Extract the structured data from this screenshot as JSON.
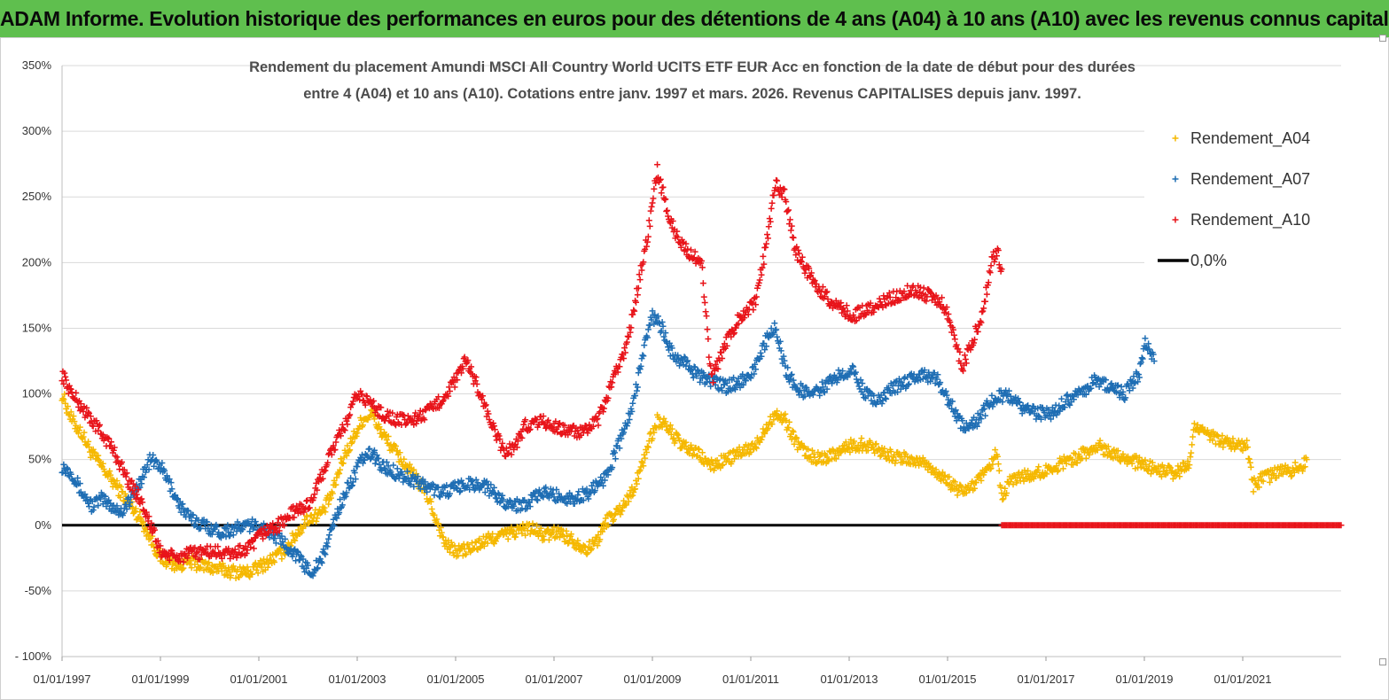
{
  "header": {
    "banner": "ADAM Informe. Evolution historique des performances en euros pour des détentions de 4 ans (A04) à 10 ans (A10) avec les revenus connus capitalisés"
  },
  "chart_data": {
    "type": "scatter",
    "title_lines": [
      "Rendement du placement Amundi MSCI All Country World UCITS ETF EUR Acc en fonction de la date de début pour des durées",
      "entre 4 (A04) et 10 ans (A10). Cotations entre janv. 1997 et mars. 2026. Revenus CAPITALISES depuis janv. 1997."
    ],
    "x_range": [
      1997.0,
      2023.0
    ],
    "x_ticks": [
      {
        "value": 1997,
        "label": "01/01/1997"
      },
      {
        "value": 1999,
        "label": "01/01/1999"
      },
      {
        "value": 2001,
        "label": "01/01/2001"
      },
      {
        "value": 2003,
        "label": "01/01/2003"
      },
      {
        "value": 2005,
        "label": "01/01/2005"
      },
      {
        "value": 2007,
        "label": "01/01/2007"
      },
      {
        "value": 2009,
        "label": "01/01/2009"
      },
      {
        "value": 2011,
        "label": "01/01/2011"
      },
      {
        "value": 2013,
        "label": "01/01/2013"
      },
      {
        "value": 2015,
        "label": "01/01/2015"
      },
      {
        "value": 2017,
        "label": "01/01/2017"
      },
      {
        "value": 2019,
        "label": "01/01/2019"
      },
      {
        "value": 2021,
        "label": "01/01/2021"
      }
    ],
    "y_range": [
      -100,
      350
    ],
    "y_ticks": [
      {
        "value": 350,
        "label": "350%"
      },
      {
        "value": 300,
        "label": "300%"
      },
      {
        "value": 250,
        "label": "250%"
      },
      {
        "value": 200,
        "label": "200%"
      },
      {
        "value": 150,
        "label": "150%"
      },
      {
        "value": 100,
        "label": "100%"
      },
      {
        "value": 50,
        "label": "50%"
      },
      {
        "value": 0,
        "label": "0%"
      },
      {
        "value": -50,
        "label": "-50%"
      },
      {
        "value": -100,
        "label": "- 100%"
      }
    ],
    "grid": "horizontal",
    "legend_position": "top-right",
    "series": [
      {
        "name": "Rendement_A04",
        "color": "#f5b800",
        "marker": "plus",
        "points": [
          [
            1997.0,
            100
          ],
          [
            1997.2,
            80
          ],
          [
            1997.4,
            70
          ],
          [
            1997.6,
            55
          ],
          [
            1997.8,
            45
          ],
          [
            1998.0,
            35
          ],
          [
            1998.2,
            25
          ],
          [
            1998.4,
            15
          ],
          [
            1998.6,
            5
          ],
          [
            1998.8,
            -10
          ],
          [
            1999.0,
            -25
          ],
          [
            1999.3,
            -30
          ],
          [
            1999.6,
            -28
          ],
          [
            2000.0,
            -32
          ],
          [
            2000.4,
            -35
          ],
          [
            2000.8,
            -36
          ],
          [
            2001.1,
            -30
          ],
          [
            2001.5,
            -20
          ],
          [
            2001.8,
            -5
          ],
          [
            2002.0,
            5
          ],
          [
            2002.3,
            10
          ],
          [
            2002.5,
            25
          ],
          [
            2002.7,
            50
          ],
          [
            2002.9,
            65
          ],
          [
            2003.1,
            80
          ],
          [
            2003.3,
            85
          ],
          [
            2003.5,
            70
          ],
          [
            2003.8,
            55
          ],
          [
            2004.1,
            40
          ],
          [
            2004.4,
            25
          ],
          [
            2004.6,
            5
          ],
          [
            2004.8,
            -15
          ],
          [
            2005.0,
            -20
          ],
          [
            2005.3,
            -18
          ],
          [
            2005.6,
            -12
          ],
          [
            2005.9,
            -8
          ],
          [
            2006.2,
            -5
          ],
          [
            2006.5,
            -2
          ],
          [
            2006.8,
            -8
          ],
          [
            2007.1,
            -5
          ],
          [
            2007.4,
            -12
          ],
          [
            2007.7,
            -18
          ],
          [
            2007.9,
            -10
          ],
          [
            2008.1,
            5
          ],
          [
            2008.3,
            10
          ],
          [
            2008.5,
            20
          ],
          [
            2008.7,
            35
          ],
          [
            2008.9,
            60
          ],
          [
            2009.1,
            80
          ],
          [
            2009.3,
            75
          ],
          [
            2009.6,
            60
          ],
          [
            2009.9,
            55
          ],
          [
            2010.2,
            45
          ],
          [
            2010.5,
            50
          ],
          [
            2010.8,
            55
          ],
          [
            2011.1,
            60
          ],
          [
            2011.3,
            75
          ],
          [
            2011.5,
            85
          ],
          [
            2011.7,
            80
          ],
          [
            2011.9,
            65
          ],
          [
            2012.1,
            55
          ],
          [
            2012.4,
            50
          ],
          [
            2012.7,
            55
          ],
          [
            2013.0,
            60
          ],
          [
            2013.3,
            62
          ],
          [
            2013.6,
            58
          ],
          [
            2013.9,
            52
          ],
          [
            2014.2,
            50
          ],
          [
            2014.5,
            48
          ],
          [
            2014.8,
            40
          ],
          [
            2015.1,
            30
          ],
          [
            2015.3,
            25
          ],
          [
            2015.5,
            30
          ],
          [
            2015.8,
            40
          ],
          [
            2016.0,
            55
          ],
          [
            2016.1,
            20
          ],
          [
            2016.3,
            35
          ],
          [
            2016.6,
            38
          ],
          [
            2016.9,
            40
          ],
          [
            2017.2,
            45
          ],
          [
            2017.5,
            50
          ],
          [
            2017.8,
            55
          ],
          [
            2018.1,
            60
          ],
          [
            2018.4,
            55
          ],
          [
            2018.7,
            50
          ],
          [
            2019.0,
            45
          ],
          [
            2019.3,
            42
          ],
          [
            2019.6,
            40
          ],
          [
            2019.9,
            45
          ],
          [
            2020.0,
            75
          ],
          [
            2020.2,
            70
          ],
          [
            2020.5,
            65
          ],
          [
            2020.8,
            62
          ],
          [
            2021.1,
            60
          ],
          [
            2021.2,
            30
          ],
          [
            2021.4,
            35
          ],
          [
            2021.7,
            40
          ],
          [
            2022.0,
            42
          ],
          [
            2022.2,
            45
          ],
          [
            2022.3,
            50
          ]
        ]
      },
      {
        "name": "Rendement_A07",
        "color": "#1f6eb4",
        "marker": "plus",
        "points": [
          [
            1997.0,
            45
          ],
          [
            1997.2,
            40
          ],
          [
            1997.4,
            25
          ],
          [
            1997.6,
            15
          ],
          [
            1997.8,
            20
          ],
          [
            1998.0,
            15
          ],
          [
            1998.2,
            10
          ],
          [
            1998.4,
            20
          ],
          [
            1998.6,
            35
          ],
          [
            1998.8,
            50
          ],
          [
            1999.0,
            45
          ],
          [
            1999.2,
            30
          ],
          [
            1999.4,
            15
          ],
          [
            1999.6,
            5
          ],
          [
            1999.9,
            0
          ],
          [
            2000.2,
            -5
          ],
          [
            2000.5,
            -3
          ],
          [
            2000.8,
            0
          ],
          [
            2001.1,
            -2
          ],
          [
            2001.4,
            -10
          ],
          [
            2001.7,
            -20
          ],
          [
            2001.9,
            -30
          ],
          [
            2002.1,
            -35
          ],
          [
            2002.3,
            -25
          ],
          [
            2002.5,
            0
          ],
          [
            2002.7,
            20
          ],
          [
            2002.9,
            35
          ],
          [
            2003.1,
            50
          ],
          [
            2003.3,
            55
          ],
          [
            2003.5,
            45
          ],
          [
            2003.8,
            40
          ],
          [
            2004.1,
            35
          ],
          [
            2004.4,
            30
          ],
          [
            2004.7,
            25
          ],
          [
            2005.0,
            28
          ],
          [
            2005.3,
            32
          ],
          [
            2005.6,
            30
          ],
          [
            2005.9,
            20
          ],
          [
            2006.2,
            15
          ],
          [
            2006.5,
            18
          ],
          [
            2006.8,
            25
          ],
          [
            2007.1,
            22
          ],
          [
            2007.4,
            20
          ],
          [
            2007.7,
            25
          ],
          [
            2008.0,
            35
          ],
          [
            2008.2,
            50
          ],
          [
            2008.4,
            70
          ],
          [
            2008.6,
            90
          ],
          [
            2008.8,
            130
          ],
          [
            2009.0,
            160
          ],
          [
            2009.2,
            150
          ],
          [
            2009.4,
            130
          ],
          [
            2009.6,
            125
          ],
          [
            2009.9,
            115
          ],
          [
            2010.2,
            110
          ],
          [
            2010.5,
            105
          ],
          [
            2010.8,
            110
          ],
          [
            2011.1,
            120
          ],
          [
            2011.3,
            140
          ],
          [
            2011.5,
            150
          ],
          [
            2011.7,
            120
          ],
          [
            2011.9,
            105
          ],
          [
            2012.2,
            100
          ],
          [
            2012.5,
            105
          ],
          [
            2012.8,
            115
          ],
          [
            2013.1,
            120
          ],
          [
            2013.3,
            100
          ],
          [
            2013.6,
            95
          ],
          [
            2013.9,
            105
          ],
          [
            2014.2,
            110
          ],
          [
            2014.5,
            115
          ],
          [
            2014.8,
            110
          ],
          [
            2015.1,
            90
          ],
          [
            2015.3,
            75
          ],
          [
            2015.6,
            80
          ],
          [
            2015.9,
            95
          ],
          [
            2016.2,
            100
          ],
          [
            2016.5,
            90
          ],
          [
            2016.8,
            85
          ],
          [
            2017.1,
            85
          ],
          [
            2017.4,
            95
          ],
          [
            2017.7,
            100
          ],
          [
            2018.0,
            110
          ],
          [
            2018.3,
            105
          ],
          [
            2018.6,
            100
          ],
          [
            2018.9,
            115
          ],
          [
            2019.0,
            140
          ],
          [
            2019.1,
            135
          ],
          [
            2019.2,
            125
          ]
        ]
      },
      {
        "name": "Rendement_A10",
        "color": "#e8141a",
        "marker": "plus",
        "points": [
          [
            1997.0,
            115
          ],
          [
            1997.2,
            100
          ],
          [
            1997.4,
            90
          ],
          [
            1997.6,
            80
          ],
          [
            1997.8,
            70
          ],
          [
            1998.0,
            60
          ],
          [
            1998.2,
            45
          ],
          [
            1998.4,
            30
          ],
          [
            1998.6,
            20
          ],
          [
            1998.8,
            0
          ],
          [
            1999.0,
            -20
          ],
          [
            1999.3,
            -25
          ],
          [
            1999.6,
            -22
          ],
          [
            2000.0,
            -20
          ],
          [
            2000.4,
            -22
          ],
          [
            2000.8,
            -18
          ],
          [
            2001.1,
            -5
          ],
          [
            2001.4,
            0
          ],
          [
            2001.7,
            10
          ],
          [
            2002.0,
            15
          ],
          [
            2002.2,
            30
          ],
          [
            2002.4,
            50
          ],
          [
            2002.6,
            65
          ],
          [
            2002.8,
            80
          ],
          [
            2003.0,
            100
          ],
          [
            2003.2,
            95
          ],
          [
            2003.5,
            85
          ],
          [
            2003.8,
            80
          ],
          [
            2004.1,
            80
          ],
          [
            2004.4,
            85
          ],
          [
            2004.7,
            95
          ],
          [
            2005.0,
            110
          ],
          [
            2005.2,
            125
          ],
          [
            2005.4,
            110
          ],
          [
            2005.6,
            90
          ],
          [
            2005.8,
            70
          ],
          [
            2006.0,
            55
          ],
          [
            2006.2,
            60
          ],
          [
            2006.4,
            75
          ],
          [
            2006.7,
            80
          ],
          [
            2007.0,
            75
          ],
          [
            2007.3,
            72
          ],
          [
            2007.6,
            70
          ],
          [
            2007.9,
            80
          ],
          [
            2008.1,
            100
          ],
          [
            2008.3,
            120
          ],
          [
            2008.5,
            140
          ],
          [
            2008.7,
            180
          ],
          [
            2008.9,
            220
          ],
          [
            2009.1,
            270
          ],
          [
            2009.3,
            240
          ],
          [
            2009.5,
            220
          ],
          [
            2009.8,
            205
          ],
          [
            2010.0,
            200
          ],
          [
            2010.2,
            110
          ],
          [
            2010.5,
            140
          ],
          [
            2010.8,
            160
          ],
          [
            2011.1,
            170
          ],
          [
            2011.3,
            210
          ],
          [
            2011.5,
            260
          ],
          [
            2011.7,
            250
          ],
          [
            2011.9,
            210
          ],
          [
            2012.2,
            190
          ],
          [
            2012.5,
            175
          ],
          [
            2012.8,
            165
          ],
          [
            2013.1,
            160
          ],
          [
            2013.4,
            165
          ],
          [
            2013.7,
            170
          ],
          [
            2014.0,
            175
          ],
          [
            2014.3,
            180
          ],
          [
            2014.6,
            175
          ],
          [
            2014.9,
            170
          ],
          [
            2015.1,
            150
          ],
          [
            2015.3,
            120
          ],
          [
            2015.5,
            140
          ],
          [
            2015.7,
            160
          ],
          [
            2015.9,
            200
          ],
          [
            2016.0,
            210
          ],
          [
            2016.1,
            195
          ]
        ]
      },
      {
        "name": "0,0%",
        "color": "#000000",
        "marker": "line",
        "points": [
          [
            1997.0,
            0
          ],
          [
            2016.1,
            0
          ]
        ]
      }
    ],
    "extra_markers": {
      "series": "Rendement_A10",
      "description": "zero-valued plus markers",
      "x_from": 2016.1,
      "x_to": 2023.0,
      "y": 0
    }
  }
}
